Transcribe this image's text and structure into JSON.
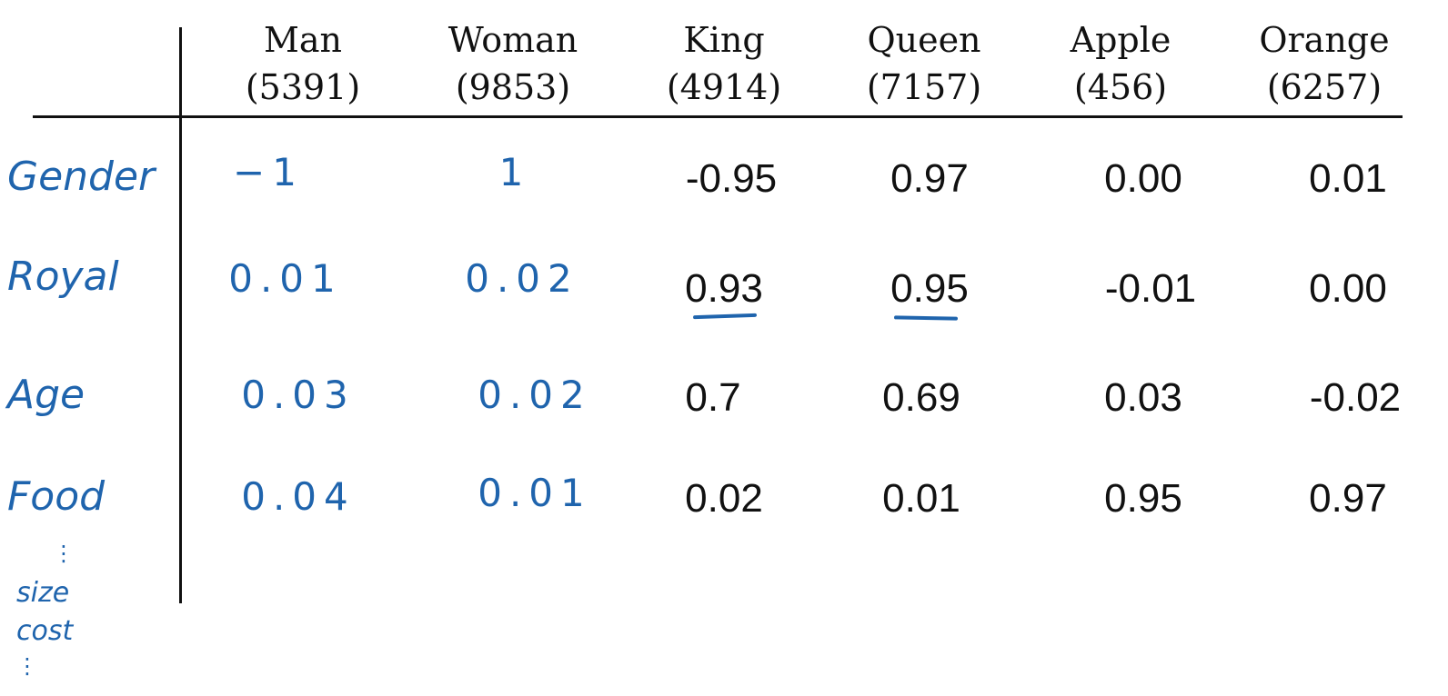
{
  "columns": [
    {
      "word": "Man",
      "index": "(5391)"
    },
    {
      "word": "Woman",
      "index": "(9853)"
    },
    {
      "word": "King",
      "index": "(4914)"
    },
    {
      "word": "Queen",
      "index": "(7157)"
    },
    {
      "word": "Apple",
      "index": "(456)"
    },
    {
      "word": "Orange",
      "index": "(6257)"
    }
  ],
  "rows": [
    {
      "label": "Gender",
      "handwritten": [
        "−1",
        "1"
      ],
      "printed": [
        "-0.95",
        "0.97",
        "0.00",
        "0.01"
      ]
    },
    {
      "label": "Royal",
      "handwritten": [
        "0.01",
        "0.02"
      ],
      "printed": [
        "0.93",
        "0.95",
        "-0.01",
        "0.00"
      ]
    },
    {
      "label": "Age",
      "handwritten": [
        "0.03",
        "0.02"
      ],
      "printed": [
        "0.7",
        "0.69",
        "0.03",
        "-0.02"
      ]
    },
    {
      "label": "Food",
      "handwritten": [
        "0.04",
        "0.01"
      ],
      "printed": [
        "0.02",
        "0.01",
        "0.95",
        "0.97"
      ]
    }
  ],
  "extra_notes": {
    "ellipsis": "⋮",
    "size": "size",
    "cost": "cost",
    "more": "⋮"
  },
  "ink_color": "#1f64ad",
  "underlined_cells": [
    "Royal-King",
    "Royal-Queen"
  ]
}
